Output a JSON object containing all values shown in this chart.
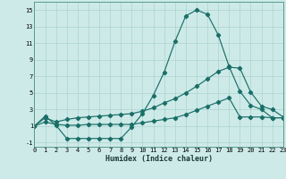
{
  "xlabel": "Humidex (Indice chaleur)",
  "bg_color": "#cdeae8",
  "line_color": "#1a6e68",
  "grid_color": "#aad4d0",
  "xlim": [
    0,
    23
  ],
  "ylim": [
    -1.5,
    16.0
  ],
  "xticks": [
    0,
    1,
    2,
    3,
    4,
    5,
    6,
    7,
    8,
    9,
    10,
    11,
    12,
    13,
    14,
    15,
    16,
    17,
    18,
    19,
    20,
    21,
    22,
    23
  ],
  "yticks": [
    -1,
    1,
    3,
    5,
    7,
    9,
    11,
    13,
    15
  ],
  "line1_x": [
    0,
    1,
    2,
    3,
    4,
    5,
    6,
    7,
    8,
    9,
    10,
    11,
    12,
    13,
    14,
    15,
    16,
    17,
    18,
    19,
    20,
    21,
    22,
    23
  ],
  "line1_y": [
    1.0,
    2.2,
    1.1,
    -0.5,
    -0.5,
    -0.5,
    -0.5,
    -0.5,
    -0.5,
    0.9,
    2.5,
    4.7,
    7.5,
    11.2,
    14.3,
    15.0,
    14.5,
    12.0,
    8.2,
    5.2,
    3.5,
    3.0,
    2.0,
    2.0
  ],
  "line2_x": [
    0,
    1,
    2,
    3,
    4,
    5,
    6,
    7,
    8,
    9,
    10,
    11,
    12,
    13,
    14,
    15,
    16,
    17,
    18,
    19,
    20,
    21,
    22,
    23
  ],
  "line2_y": [
    1.0,
    2.0,
    1.5,
    1.8,
    2.0,
    2.1,
    2.2,
    2.3,
    2.4,
    2.5,
    2.8,
    3.2,
    3.8,
    4.3,
    5.0,
    5.8,
    6.7,
    7.6,
    8.1,
    8.0,
    5.1,
    3.4,
    3.0,
    2.1
  ],
  "line3_x": [
    0,
    1,
    2,
    3,
    4,
    5,
    6,
    7,
    8,
    9,
    10,
    11,
    12,
    13,
    14,
    15,
    16,
    17,
    18,
    19,
    20,
    21,
    22,
    23
  ],
  "line3_y": [
    1.0,
    1.5,
    1.2,
    1.1,
    1.1,
    1.2,
    1.2,
    1.2,
    1.2,
    1.2,
    1.4,
    1.6,
    1.8,
    2.0,
    2.4,
    2.9,
    3.4,
    3.9,
    4.4,
    2.1,
    2.1,
    2.1,
    2.0,
    2.0
  ]
}
